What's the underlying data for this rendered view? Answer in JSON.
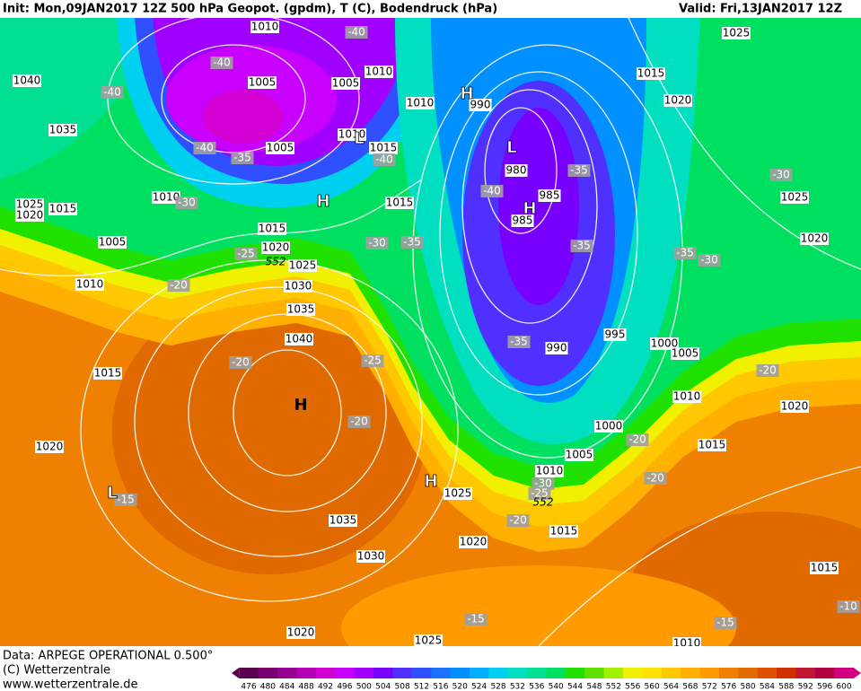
{
  "header": {
    "left": "Init: Mon,09JAN2017 12Z 500 hPa Geopot. (gpdm), T (C), Bodendruck (hPa)",
    "right": "Valid: Fri,13JAN2017 12Z"
  },
  "footer": {
    "data": "Data: ARPEGE OPERATIONAL 0.500°",
    "copyright": "(C) Wetterzentrale",
    "url": "www.wetterzentrale.de"
  },
  "colorbar": {
    "labels": [
      476,
      480,
      484,
      488,
      492,
      496,
      500,
      504,
      508,
      512,
      516,
      520,
      524,
      528,
      532,
      536,
      540,
      544,
      548,
      552,
      556,
      560,
      564,
      568,
      572,
      576,
      580,
      584,
      588,
      592,
      596,
      600
    ],
    "colors": [
      "#5a0050",
      "#780070",
      "#960090",
      "#b400b4",
      "#d200d2",
      "#c800ff",
      "#a000ff",
      "#7800ff",
      "#5030ff",
      "#3050ff",
      "#2070ff",
      "#0090ff",
      "#00b0ff",
      "#00d0f0",
      "#00e0c0",
      "#00e090",
      "#00e060",
      "#20e000",
      "#60e000",
      "#a0f000",
      "#f0f000",
      "#ffe000",
      "#ffc800",
      "#ffb000",
      "#ff9a00",
      "#f08000",
      "#e06a00",
      "#e05000",
      "#d03000",
      "#c01830",
      "#b00040",
      "#d00080"
    ]
  },
  "map": {
    "isobar_labels": [
      "1010",
      "1040",
      "1005",
      "1005",
      "1010",
      "1010",
      "990",
      "1035",
      "1005",
      "1010",
      "1015",
      "1025",
      "1015",
      "1020",
      "980",
      "985",
      "985",
      "1010",
      "1025",
      "1020",
      "1015",
      "1015",
      "1015",
      "1025",
      "1020",
      "1005",
      "1020",
      "1025",
      "1010",
      "1030",
      "1035",
      "995",
      "990",
      "1000",
      "1005",
      "1040",
      "1015",
      "1010",
      "1020",
      "1000",
      "1015",
      "1005",
      "1020",
      "1010",
      "1025",
      "1035",
      "1015",
      "1020",
      "1030",
      "1015",
      "1020",
      "1025",
      "1010"
    ],
    "temperature_labels": [
      "-40",
      "-40",
      "-40",
      "-40",
      "-35",
      "-40",
      "-30",
      "-40",
      "-35",
      "-30",
      "-25",
      "-20",
      "-30",
      "-35",
      "-35",
      "-35",
      "-30",
      "-20",
      "-25",
      "-35",
      "-20",
      "-20",
      "-20",
      "-20",
      "-30",
      "-25",
      "-15",
      "-20",
      "-15",
      "-15",
      "-10"
    ],
    "pressure_centers": [
      "H",
      "H",
      "H",
      "H",
      "H",
      "L",
      "L",
      "L"
    ],
    "contour_labels": [
      "552",
      "552"
    ]
  }
}
